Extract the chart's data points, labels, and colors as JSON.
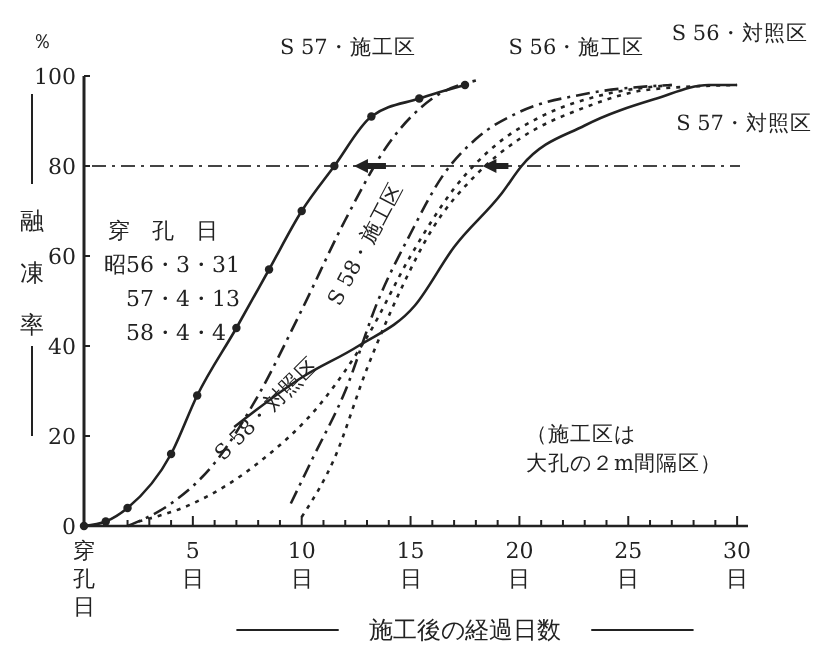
{
  "chart_data": {
    "type": "line",
    "xlabel": "施工後の経過日数",
    "ylabel": "融凍率",
    "xlim": [
      0,
      30.5
    ],
    "ylim": [
      0,
      100
    ],
    "xticks": [
      {
        "value": 0,
        "label": "穿孔日"
      },
      {
        "value": 1,
        "label": null
      },
      {
        "value": 2,
        "label": null
      },
      {
        "value": 3,
        "label": null
      },
      {
        "value": 4,
        "label": null
      },
      {
        "value": 5,
        "label": "5\n日"
      },
      {
        "value": 6,
        "label": null
      },
      {
        "value": 7,
        "label": null
      },
      {
        "value": 8,
        "label": null
      },
      {
        "value": 9,
        "label": null
      },
      {
        "value": 10,
        "label": "10\n日"
      },
      {
        "value": 11,
        "label": null
      },
      {
        "value": 12,
        "label": null
      },
      {
        "value": 13,
        "label": null
      },
      {
        "value": 14,
        "label": null
      },
      {
        "value": 15,
        "label": "15\n日"
      },
      {
        "value": 16,
        "label": null
      },
      {
        "value": 17,
        "label": null
      },
      {
        "value": 18,
        "label": null
      },
      {
        "value": 19,
        "label": null
      },
      {
        "value": 20,
        "label": "20\n日"
      },
      {
        "value": 21,
        "label": null
      },
      {
        "value": 22,
        "label": null
      },
      {
        "value": 23,
        "label": null
      },
      {
        "value": 24,
        "label": null
      },
      {
        "value": 25,
        "label": "25\n日"
      },
      {
        "value": 26,
        "label": null
      },
      {
        "value": 27,
        "label": null
      },
      {
        "value": 28,
        "label": null
      },
      {
        "value": 29,
        "label": null
      },
      {
        "value": 30,
        "label": "30\n日"
      }
    ],
    "yticks": [
      0,
      20,
      40,
      60,
      80,
      100
    ],
    "grid": false,
    "series": [
      {
        "name": "S 57・施工区",
        "color": "#222222",
        "line_style": "solid",
        "marker": "circle",
        "x": [
          0,
          1,
          2,
          4,
          5.2,
          7,
          8.5,
          10,
          11.5,
          13.2,
          15.4,
          17.5
        ],
        "values": [
          0,
          1,
          4,
          16,
          29,
          44,
          57,
          70,
          80,
          91,
          95,
          98
        ]
      },
      {
        "name": "S 58・施工区",
        "color": "#222222",
        "line_style": "dashed",
        "marker": "none",
        "x": [
          2,
          4,
          6,
          8,
          10,
          12,
          14,
          16,
          18
        ],
        "values": [
          0,
          5,
          14,
          29,
          48,
          68,
          85,
          95,
          99
        ]
      },
      {
        "name": "S 58・対照区",
        "color": "#222222",
        "line_style": "dotted",
        "marker": "none",
        "x": [
          2.5,
          5,
          8,
          11,
          13,
          15,
          17,
          19,
          21,
          24,
          27
        ],
        "values": [
          1,
          5,
          14,
          28,
          42,
          60,
          75,
          85,
          91,
          96,
          98
        ]
      },
      {
        "name": "S 56・施工区",
        "color": "#222222",
        "line_style": "dashed",
        "marker": "none",
        "x": [
          9.5,
          10.5,
          12,
          13.5,
          15,
          16.5,
          18,
          20,
          23,
          27
        ],
        "values": [
          5,
          15,
          30,
          50,
          65,
          78,
          86,
          92,
          96,
          98
        ]
      },
      {
        "name": "S 56・対照区",
        "color": "#222222",
        "line_style": "dotted",
        "marker": "none",
        "x": [
          10,
          11.5,
          13,
          14.5,
          16,
          18,
          20,
          23,
          26,
          30
        ],
        "values": [
          2,
          15,
          35,
          52,
          66,
          78,
          86,
          93,
          97,
          98
        ]
      },
      {
        "name": "S 57・対照区",
        "color": "#222222",
        "line_style": "solid",
        "marker": "none",
        "x": [
          6.9,
          10,
          12.6,
          15.2,
          17,
          19.2,
          20.1,
          23,
          26.3,
          28.7,
          30
        ],
        "values": [
          22,
          33,
          40,
          49,
          62,
          74,
          80,
          89,
          95,
          98,
          98
        ]
      }
    ],
    "ref_lines": [
      {
        "axis": "y",
        "value": 80,
        "color": "#444444",
        "line_style": "dashed"
      }
    ],
    "annotations": [
      "％",
      "穿　孔　日",
      "昭56・3・31",
      "57・4・13",
      "58・4・4",
      "（施工区は大孔の２m間隔区）"
    ]
  }
}
